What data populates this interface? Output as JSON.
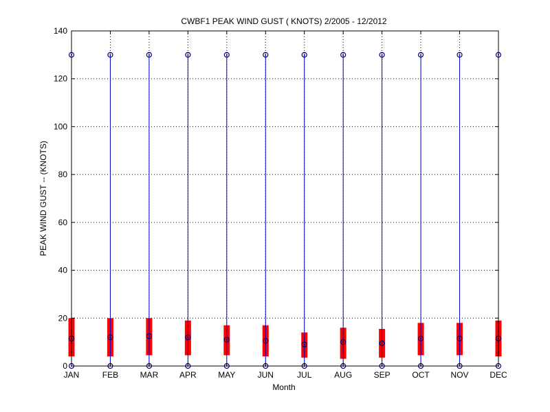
{
  "chart_data": {
    "type": "box",
    "title": "CWBF1  PEAK WIND GUST ( KNOTS) 2/2005 - 12/2012",
    "xlabel": "Month",
    "ylabel": "PEAK WIND GUST -- (KNOTS)",
    "ylim": [
      0,
      140
    ],
    "yticks": [
      0,
      20,
      40,
      60,
      80,
      100,
      120,
      140
    ],
    "grid": "dotted",
    "categories": [
      "JAN",
      "FEB",
      "MAR",
      "APR",
      "MAY",
      "JUN",
      "JUL",
      "AUG",
      "SEP",
      "OCT",
      "NOV",
      "DEC"
    ],
    "min": [
      0,
      0,
      0,
      0,
      0,
      0,
      0,
      0,
      0,
      0,
      0,
      0
    ],
    "max": [
      130,
      130,
      130,
      130,
      130,
      130,
      130,
      130,
      130,
      130,
      130,
      130
    ],
    "box_low": [
      4,
      4,
      4.5,
      4.5,
      4.5,
      4,
      3.5,
      3,
      3.5,
      4.5,
      4.5,
      4
    ],
    "box_high": [
      20,
      20,
      20,
      19,
      17,
      17,
      14,
      16,
      15.5,
      18,
      18,
      19
    ],
    "center": [
      11.5,
      12,
      12.5,
      12,
      11,
      10.5,
      9,
      10,
      9.5,
      11.5,
      11.5,
      11.5
    ],
    "colors": {
      "box": "#ff0000",
      "whisker": "#0000cc",
      "marker": "#000080",
      "grid": "#000000"
    }
  }
}
